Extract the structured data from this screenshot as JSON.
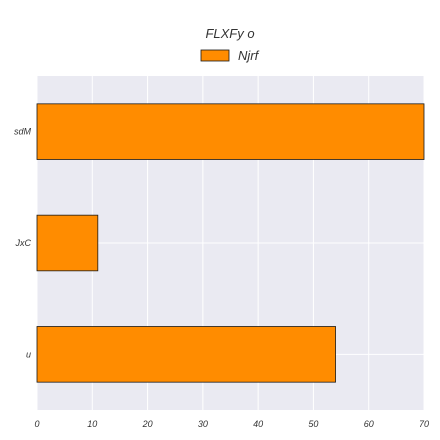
{
  "chart_data": {
    "type": "bar",
    "orientation": "horizontal",
    "title": "FLXFy o",
    "xlabel": "",
    "ylabel": "",
    "categories": [
      "sdM",
      "JxC",
      "u"
    ],
    "series": [
      {
        "name": "Njrf",
        "values": [
          70,
          11,
          54
        ]
      }
    ],
    "xlim": [
      0,
      70
    ],
    "xticks": [
      "0",
      "10",
      "20",
      "30",
      "40",
      "50",
      "60",
      "70"
    ],
    "grid": true,
    "legend": "top-center",
    "colors": {
      "bar": "#FF8C00",
      "bar_edge": "#1a1a1a",
      "plot_bg": "#EAEAF2",
      "grid": "#ffffff",
      "text": "#333333"
    }
  }
}
